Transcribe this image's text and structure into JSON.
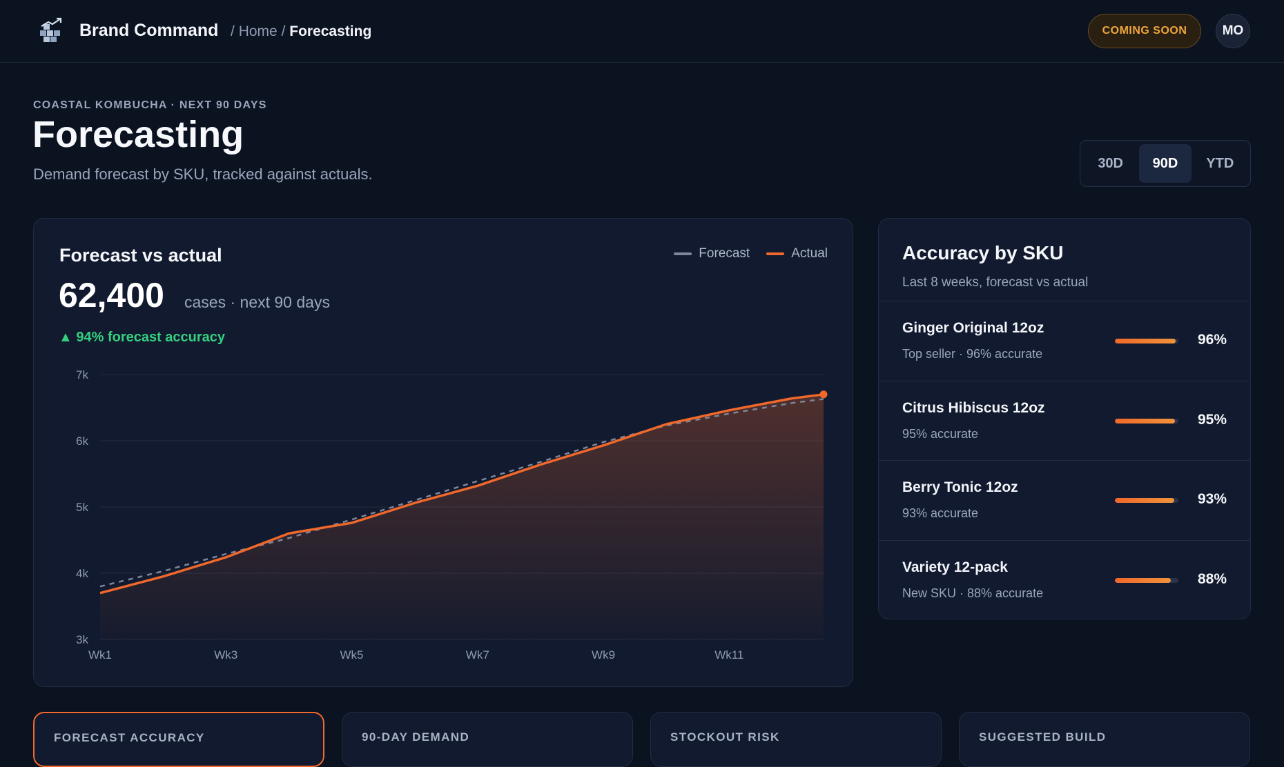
{
  "app": {
    "name": "Brand Command",
    "breadcrumb": {
      "sep1": "/",
      "home": "Home",
      "sep2": "/",
      "current": "Forecasting"
    },
    "coming_soon": "COMING SOON",
    "avatar_initials": "MO"
  },
  "header": {
    "eyebrow": "COASTAL KOMBUCHA · NEXT 90 DAYS",
    "title": "Forecasting",
    "subtitle": "Demand forecast by SKU, tracked against actuals."
  },
  "range": {
    "options": [
      "30D",
      "90D",
      "YTD"
    ],
    "selected": "90D"
  },
  "forecast_card": {
    "title": "Forecast vs actual",
    "total": "62,400",
    "total_unit": "cases · next 90 days",
    "accuracy": "▲ 94% forecast accuracy",
    "legend": {
      "forecast": "Forecast",
      "actual": "Actual"
    }
  },
  "chart_data": {
    "type": "line",
    "title": "Forecast vs actual",
    "x_ticks": [
      "Wk1",
      "Wk3",
      "Wk5",
      "Wk7",
      "Wk9",
      "Wk11"
    ],
    "y_ticks": [
      "3k",
      "4k",
      "5k",
      "6k",
      "7k"
    ],
    "ylim": [
      3000,
      7000
    ],
    "x": [
      1,
      2,
      3,
      4,
      5,
      6,
      7,
      8,
      9,
      10,
      11,
      12,
      12.5
    ],
    "series": [
      {
        "name": "Forecast",
        "style": "dashed",
        "color": "#7d869a",
        "values": [
          3800,
          4030,
          4290,
          4530,
          4810,
          5100,
          5390,
          5680,
          5980,
          6230,
          6410,
          6570,
          6630
        ]
      },
      {
        "name": "Actual",
        "style": "solid",
        "color": "#f0682b",
        "values": [
          3700,
          3950,
          4240,
          4600,
          4760,
          5060,
          5320,
          5640,
          5930,
          6250,
          6460,
          6640,
          6700
        ]
      }
    ],
    "grid": true,
    "legend_position": "top-right",
    "area_fill_series": "Actual"
  },
  "accuracy_card": {
    "title": "Accuracy by SKU",
    "subtitle": "Last 8 weeks, forecast vs actual",
    "items": [
      {
        "name": "Ginger Original 12oz",
        "note": "Top seller · 96% accurate",
        "pct": "96%",
        "value": 0.96
      },
      {
        "name": "Citrus Hibiscus 12oz",
        "note": "95% accurate",
        "pct": "95%",
        "value": 0.95
      },
      {
        "name": "Berry Tonic 12oz",
        "note": "93% accurate",
        "pct": "93%",
        "value": 0.93
      },
      {
        "name": "Variety 12-pack",
        "note": "New SKU · 88% accurate",
        "pct": "88%",
        "value": 0.88
      }
    ]
  },
  "kpis": [
    {
      "label": "FORECAST ACCURACY"
    },
    {
      "label": "90-DAY DEMAND"
    },
    {
      "label": "STOCKOUT RISK"
    },
    {
      "label": "SUGGESTED BUILD"
    }
  ],
  "colors": {
    "accent": "#f0682b",
    "positive": "#35d07f",
    "warning": "#f0a63d",
    "background": "#0b1220",
    "card": "#111a2e"
  },
  "icons": {
    "brand": "boxes-arrow-icon"
  }
}
